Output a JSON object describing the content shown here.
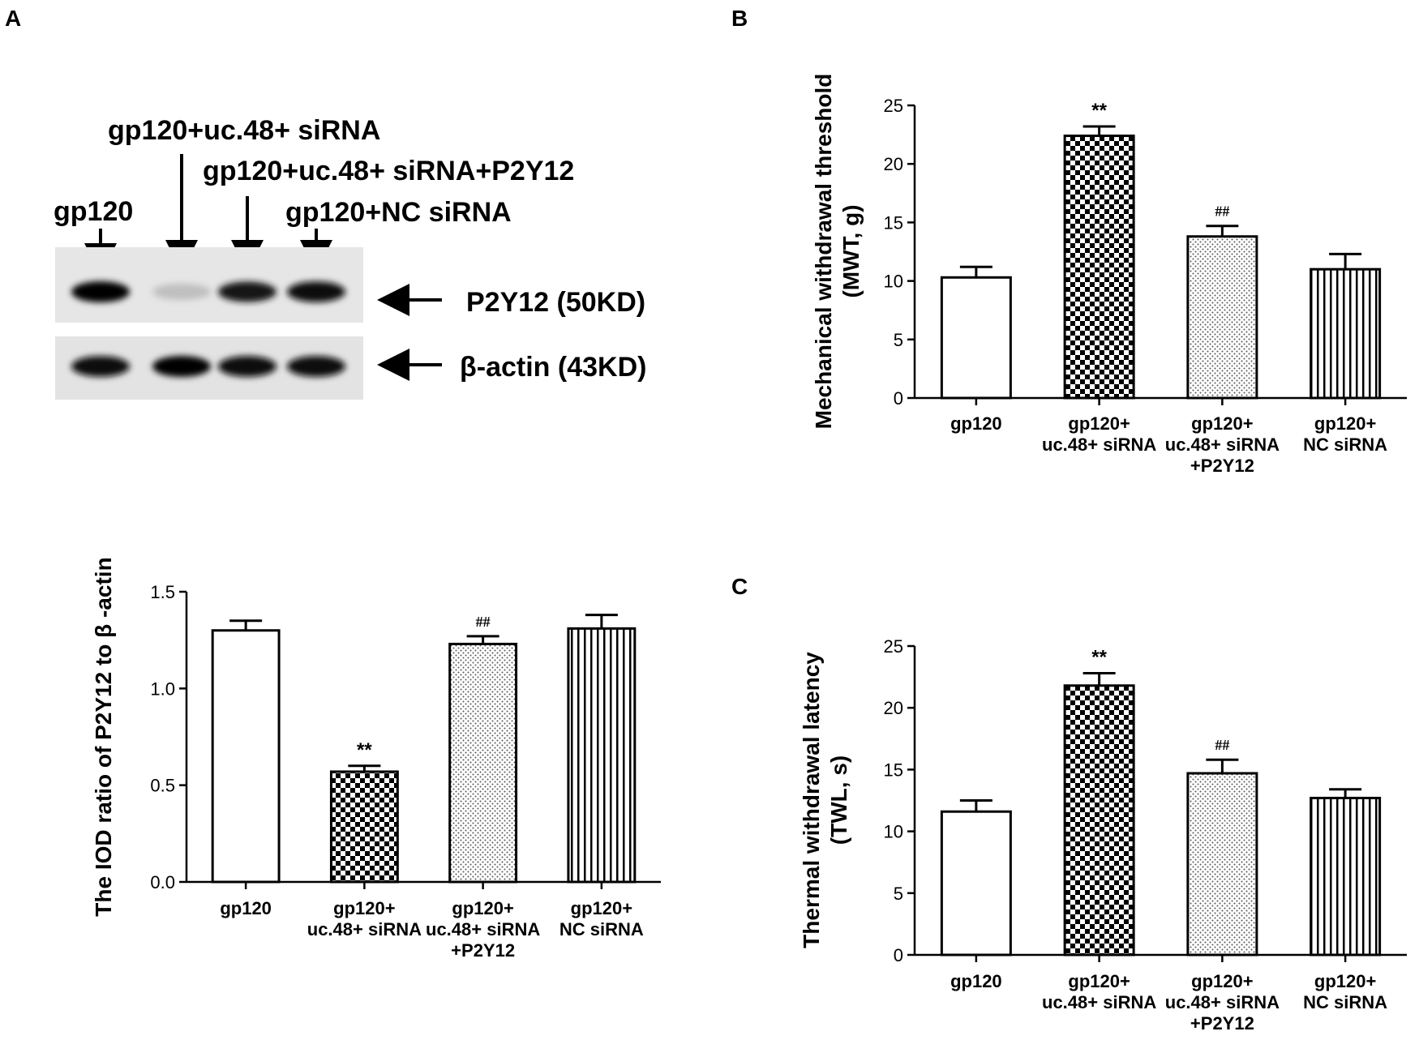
{
  "panel_labels": {
    "a": "A",
    "b": "B",
    "c": "C"
  },
  "blot": {
    "lane_labels": [
      "gp120",
      "gp120+uc.48+ siRNA",
      "gp120+uc.48+ siRNA+P2Y12",
      "gp120+NC siRNA"
    ],
    "bands": [
      "P2Y12 (50KD)",
      "β-actin (43KD)"
    ],
    "p2y12_intensity": [
      1.0,
      0.25,
      0.9,
      0.95
    ],
    "actin_intensity": [
      0.95,
      1.0,
      0.97,
      0.97
    ]
  },
  "chart_data": [
    {
      "id": "iod",
      "type": "bar",
      "ylabel": "The IOD ratio of  P2Y12 to β -actin",
      "ylim": [
        0,
        1.5
      ],
      "yticks": [
        "0.0",
        "0.5",
        "1.0",
        "1.5"
      ],
      "ytick_values": [
        0,
        0.5,
        1.0,
        1.5
      ],
      "categories": [
        [
          "gp120"
        ],
        [
          "gp120+",
          "uc.48+ siRNA"
        ],
        [
          "gp120+",
          "uc.48+ siRNA",
          "+P2Y12"
        ],
        [
          "gp120+",
          "NC siRNA"
        ]
      ],
      "values": [
        1.3,
        0.57,
        1.23,
        1.31
      ],
      "errors": [
        0.05,
        0.03,
        0.04,
        0.07
      ],
      "patterns": [
        "none",
        "check",
        "dots",
        "vlines"
      ],
      "annotations": [
        "",
        "**",
        "##",
        ""
      ]
    },
    {
      "id": "mwt",
      "type": "bar",
      "ylabel": [
        "Mechanical withdrawal threshold",
        "(MWT, g)"
      ],
      "ylim": [
        0,
        25
      ],
      "yticks": [
        "0",
        "5",
        "10",
        "15",
        "20",
        "25"
      ],
      "ytick_values": [
        0,
        5,
        10,
        15,
        20,
        25
      ],
      "categories": [
        [
          "gp120"
        ],
        [
          "gp120+",
          "uc.48+ siRNA"
        ],
        [
          "gp120+",
          "uc.48+ siRNA",
          "+P2Y12"
        ],
        [
          "gp120+",
          "NC siRNA"
        ]
      ],
      "values": [
        10.3,
        22.4,
        13.8,
        11.0
      ],
      "errors": [
        0.9,
        0.8,
        0.9,
        1.3
      ],
      "patterns": [
        "none",
        "check",
        "dots",
        "vlines"
      ],
      "annotations": [
        "",
        "**",
        "##",
        ""
      ]
    },
    {
      "id": "twl",
      "type": "bar",
      "ylabel": [
        "Thermal withdrawal latency",
        "(TWL, s)"
      ],
      "ylim": [
        0,
        25
      ],
      "yticks": [
        "0",
        "5",
        "10",
        "15",
        "20",
        "25"
      ],
      "ytick_values": [
        0,
        5,
        10,
        15,
        20,
        25
      ],
      "categories": [
        [
          "gp120"
        ],
        [
          "gp120+",
          "uc.48+ siRNA"
        ],
        [
          "gp120+",
          "uc.48+ siRNA",
          "+P2Y12"
        ],
        [
          "gp120+",
          "NC siRNA"
        ]
      ],
      "values": [
        11.6,
        21.8,
        14.7,
        12.7
      ],
      "errors": [
        0.9,
        1.0,
        1.1,
        0.7
      ],
      "patterns": [
        "none",
        "check",
        "dots",
        "vlines"
      ],
      "annotations": [
        "",
        "**",
        "##",
        ""
      ]
    }
  ]
}
